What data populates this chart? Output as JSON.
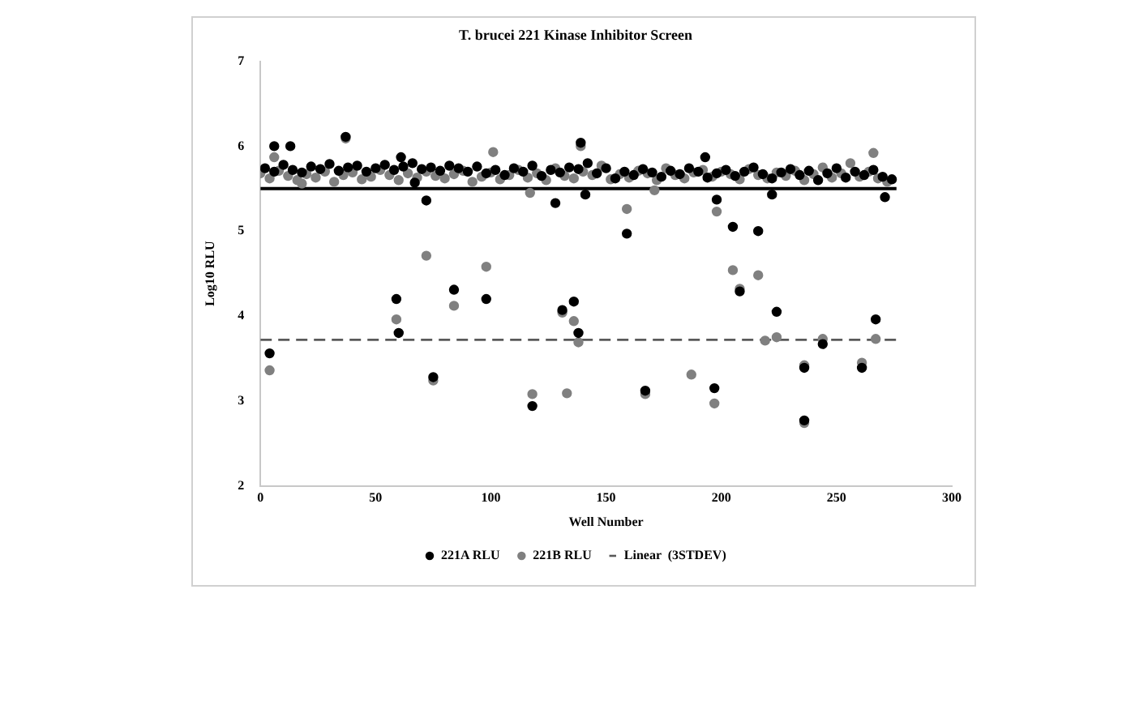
{
  "chart_data": {
    "type": "scatter",
    "title": "T. brucei 221 Kinase Inhibitor Screen",
    "xlabel": "Well Number",
    "ylabel": "Log10 RLU",
    "xlim": [
      0,
      300
    ],
    "xticks": [
      0,
      50,
      100,
      150,
      200,
      250,
      300
    ],
    "ylim": [
      2,
      7
    ],
    "yticks": [
      2,
      3,
      4,
      5,
      6,
      7
    ],
    "grid": false,
    "legend": "bottom",
    "series": [
      {
        "name": "221A RLU",
        "color": "#000000",
        "marker": "circle",
        "x": [
          2,
          6,
          10,
          14,
          18,
          22,
          26,
          30,
          34,
          38,
          42,
          46,
          50,
          54,
          58,
          62,
          66,
          70,
          74,
          78,
          82,
          86,
          90,
          94,
          98,
          102,
          106,
          110,
          114,
          118,
          122,
          126,
          130,
          134,
          138,
          142,
          146,
          150,
          154,
          158,
          162,
          166,
          170,
          174,
          178,
          182,
          186,
          190,
          194,
          198,
          202,
          206,
          210,
          214,
          218,
          222,
          226,
          230,
          234,
          238,
          242,
          246,
          250,
          254,
          258,
          262,
          266,
          270,
          274,
          4,
          59,
          60,
          75,
          84,
          98,
          118,
          131,
          136,
          138,
          159,
          167,
          197,
          205,
          208,
          216,
          224,
          236,
          244,
          236,
          261,
          267,
          72,
          128,
          141,
          198,
          271,
          222,
          67,
          61,
          6,
          13,
          37,
          139,
          193
        ],
        "values": [
          5.74,
          5.7,
          5.78,
          5.72,
          5.69,
          5.76,
          5.73,
          5.79,
          5.71,
          5.75,
          5.77,
          5.7,
          5.74,
          5.78,
          5.72,
          5.76,
          5.8,
          5.73,
          5.75,
          5.71,
          5.77,
          5.74,
          5.7,
          5.76,
          5.68,
          5.72,
          5.66,
          5.74,
          5.7,
          5.77,
          5.65,
          5.72,
          5.69,
          5.75,
          5.73,
          5.8,
          5.68,
          5.74,
          5.62,
          5.7,
          5.66,
          5.73,
          5.69,
          5.64,
          5.71,
          5.67,
          5.74,
          5.7,
          5.63,
          5.68,
          5.72,
          5.65,
          5.7,
          5.75,
          5.67,
          5.62,
          5.69,
          5.73,
          5.66,
          5.71,
          5.6,
          5.68,
          5.74,
          5.63,
          5.7,
          5.66,
          5.72,
          5.64,
          5.61,
          3.56,
          4.2,
          3.8,
          3.28,
          4.31,
          4.2,
          2.94,
          4.07,
          4.17,
          3.8,
          4.97,
          3.12,
          3.15,
          5.05,
          4.29,
          5.0,
          4.05,
          3.39,
          3.67,
          2.77,
          3.39,
          3.96,
          5.36,
          5.33,
          5.43,
          5.37,
          5.4,
          5.43,
          5.57,
          5.87,
          6.0,
          6.0,
          6.11,
          6.04,
          5.87
        ]
      },
      {
        "name": "221B RLU",
        "color": "#808080",
        "marker": "circle",
        "x": [
          0,
          4,
          8,
          12,
          16,
          20,
          24,
          28,
          32,
          36,
          40,
          44,
          48,
          52,
          56,
          60,
          64,
          68,
          72,
          76,
          80,
          84,
          88,
          92,
          96,
          100,
          104,
          108,
          112,
          116,
          120,
          124,
          128,
          132,
          136,
          140,
          144,
          148,
          152,
          156,
          160,
          164,
          168,
          172,
          176,
          180,
          184,
          188,
          192,
          196,
          200,
          204,
          208,
          212,
          216,
          220,
          224,
          228,
          232,
          236,
          240,
          244,
          248,
          252,
          256,
          260,
          264,
          268,
          272,
          4,
          59,
          72,
          75,
          84,
          98,
          118,
          131,
          133,
          136,
          138,
          167,
          187,
          197,
          205,
          208,
          216,
          219,
          224,
          236,
          236,
          244,
          261,
          267,
          159,
          198,
          117,
          171,
          101,
          37,
          139,
          6,
          18,
          266
        ],
        "values": [
          5.68,
          5.62,
          5.71,
          5.65,
          5.6,
          5.67,
          5.63,
          5.7,
          5.58,
          5.66,
          5.69,
          5.61,
          5.64,
          5.72,
          5.66,
          5.6,
          5.68,
          5.63,
          5.7,
          5.65,
          5.62,
          5.67,
          5.71,
          5.58,
          5.64,
          5.69,
          5.61,
          5.66,
          5.72,
          5.63,
          5.68,
          5.6,
          5.74,
          5.65,
          5.62,
          5.7,
          5.66,
          5.77,
          5.61,
          5.67,
          5.63,
          5.71,
          5.68,
          5.6,
          5.74,
          5.66,
          5.62,
          5.69,
          5.72,
          5.64,
          5.7,
          5.67,
          5.61,
          5.73,
          5.66,
          5.62,
          5.69,
          5.65,
          5.71,
          5.6,
          5.67,
          5.75,
          5.63,
          5.68,
          5.8,
          5.64,
          5.7,
          5.62,
          5.58,
          3.36,
          3.96,
          4.71,
          3.24,
          4.12,
          4.58,
          3.08,
          4.04,
          3.09,
          3.94,
          3.69,
          3.08,
          3.31,
          2.97,
          4.54,
          4.32,
          4.48,
          3.71,
          3.75,
          3.42,
          2.74,
          3.73,
          3.45,
          3.73,
          5.26,
          5.23,
          5.45,
          5.48,
          5.93,
          6.09,
          6.0,
          5.87,
          5.56,
          5.92
        ]
      },
      {
        "type": "line",
        "marker": "none",
        "line_style": "solid",
        "color": "#000000",
        "x": [
          0,
          276
        ],
        "values": [
          5.5,
          5.5
        ]
      },
      {
        "type": "line",
        "name": "Linear  (3STDEV)",
        "marker": "none",
        "line_style": "dashed",
        "color": "#595959",
        "x": [
          0,
          276
        ],
        "values": [
          3.72,
          3.72
        ]
      }
    ]
  }
}
